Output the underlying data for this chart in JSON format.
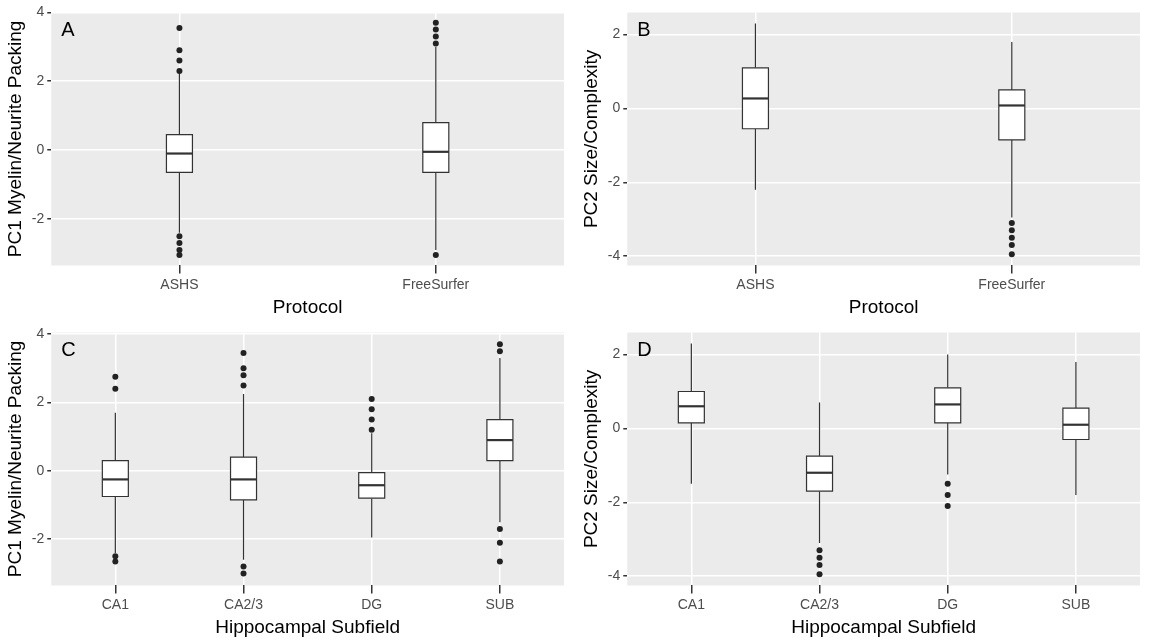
{
  "chart_data": [
    {
      "type": "box",
      "title": "A",
      "xlabel": "Protocol",
      "ylabel": "PC1 Myelin/Neurite Packing",
      "categories": [
        "ASHS",
        "FreeSurfer"
      ],
      "ylim": [
        -3.35,
        4.0
      ],
      "yticks": [
        -2,
        0,
        2,
        4
      ],
      "grid": true,
      "boxes": [
        {
          "low": -2.4,
          "q1": -0.65,
          "median": -0.1,
          "q3": 0.45,
          "high": 2.25,
          "outliers": [
            2.3,
            2.6,
            2.9,
            3.55,
            -2.5,
            -2.7,
            -2.9,
            -3.05
          ]
        },
        {
          "low": -2.9,
          "q1": -0.65,
          "median": -0.05,
          "q3": 0.8,
          "high": 3.0,
          "outliers": [
            3.1,
            3.3,
            3.5,
            3.7,
            -3.05
          ]
        }
      ]
    },
    {
      "type": "box",
      "title": "B",
      "xlabel": "Protocol",
      "ylabel": "PC2 Size/Complexity",
      "categories": [
        "ASHS",
        "FreeSurfer"
      ],
      "ylim": [
        -4.25,
        2.6
      ],
      "yticks": [
        -4,
        -2,
        0,
        2
      ],
      "grid": true,
      "boxes": [
        {
          "low": -2.2,
          "q1": -0.55,
          "median": 0.27,
          "q3": 1.1,
          "high": 2.3
        },
        {
          "low": -2.95,
          "q1": -0.85,
          "median": 0.08,
          "q3": 0.5,
          "high": 1.8,
          "outliers": [
            -3.1,
            -3.3,
            -3.5,
            -3.7,
            -3.95
          ]
        }
      ]
    },
    {
      "type": "box",
      "title": "C",
      "xlabel": "Hippocampal Subfield",
      "ylabel": "PC1 Myelin/Neurite Packing",
      "categories": [
        "CA1",
        "CA2/3",
        "DG",
        "SUB"
      ],
      "ylim": [
        -3.35,
        4.05
      ],
      "yticks": [
        -2,
        0,
        2,
        4
      ],
      "grid": true,
      "boxes": [
        {
          "low": -2.4,
          "q1": -0.75,
          "median": -0.25,
          "q3": 0.3,
          "high": 1.7,
          "outliers": [
            2.4,
            2.75,
            -2.5,
            -2.65
          ]
        },
        {
          "low": -2.6,
          "q1": -0.85,
          "median": -0.25,
          "q3": 0.4,
          "high": 2.25,
          "outliers": [
            2.5,
            2.8,
            3.0,
            3.45,
            -2.8,
            -3.0
          ]
        },
        {
          "low": -1.95,
          "q1": -0.8,
          "median": -0.42,
          "q3": -0.05,
          "high": 1.1,
          "outliers": [
            1.2,
            1.5,
            1.8,
            2.1
          ]
        },
        {
          "low": -1.5,
          "q1": 0.3,
          "median": 0.9,
          "q3": 1.5,
          "high": 3.3,
          "outliers": [
            3.5,
            3.7,
            -1.7,
            -2.1,
            -2.65
          ]
        }
      ]
    },
    {
      "type": "box",
      "title": "D",
      "xlabel": "Hippocampal Subfield",
      "ylabel": "PC2 Size/Complexity",
      "categories": [
        "CA1",
        "CA2/3",
        "DG",
        "SUB"
      ],
      "ylim": [
        -4.25,
        2.6
      ],
      "yticks": [
        -4,
        -2,
        0,
        2
      ],
      "grid": true,
      "boxes": [
        {
          "low": -1.5,
          "q1": 0.15,
          "median": 0.6,
          "q3": 1.0,
          "high": 2.3
        },
        {
          "low": -3.1,
          "q1": -1.7,
          "median": -1.2,
          "q3": -0.75,
          "high": 0.7,
          "outliers": [
            -3.3,
            -3.5,
            -3.7,
            -3.95
          ]
        },
        {
          "low": -1.25,
          "q1": 0.15,
          "median": 0.65,
          "q3": 1.1,
          "high": 2.0,
          "outliers": [
            -1.5,
            -1.8,
            -2.1
          ]
        },
        {
          "low": -1.8,
          "q1": -0.3,
          "median": 0.1,
          "q3": 0.55,
          "high": 1.8
        }
      ]
    }
  ]
}
